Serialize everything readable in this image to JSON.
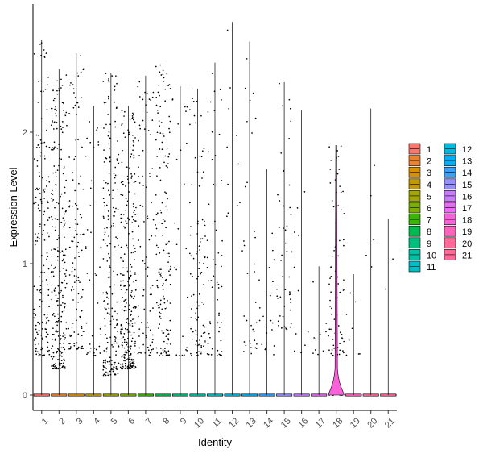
{
  "chart_data": {
    "type": "violin",
    "xlabel": "Identity",
    "ylabel": "Expression Level",
    "ylim": [
      -0.2,
      2.87
    ],
    "yticks": [
      0,
      1,
      2
    ],
    "categories": [
      "1",
      "2",
      "3",
      "4",
      "5",
      "6",
      "7",
      "8",
      "9",
      "10",
      "11",
      "12",
      "13",
      "14",
      "15",
      "16",
      "17",
      "18",
      "19",
      "20",
      "21"
    ],
    "violin_colors": [
      "#F8766D",
      "#EA8331",
      "#D89000",
      "#C09B00",
      "#A3A500",
      "#7CAE00",
      "#39B600",
      "#00BB4E",
      "#00BF7D",
      "#00C1A3",
      "#00BFC4",
      "#00BAE0",
      "#00B0F6",
      "#35A2FF",
      "#9590FF",
      "#C77CFF",
      "#E76BF3",
      "#FA62DB",
      "#FF62BC",
      "#FF6A98",
      "#FF6A98"
    ],
    "max_values": [
      2.7,
      2.48,
      2.6,
      2.2,
      2.45,
      2.2,
      2.43,
      2.53,
      2.35,
      2.33,
      2.53,
      2.84,
      2.69,
      1.72,
      2.38,
      2.17,
      0.98,
      1.9,
      0.92,
      2.18,
      1.34
    ],
    "point_counts": [
      170,
      260,
      120,
      40,
      200,
      280,
      90,
      160,
      25,
      100,
      60,
      12,
      35,
      20,
      50,
      12,
      10,
      75,
      8,
      5,
      2
    ],
    "point_ranges": [
      [
        0.3,
        2.7
      ],
      [
        0.2,
        2.48
      ],
      [
        0.35,
        2.6
      ],
      [
        0.3,
        2.2
      ],
      [
        0.15,
        2.45
      ],
      [
        0.2,
        2.2
      ],
      [
        0.3,
        2.43
      ],
      [
        0.3,
        2.53
      ],
      [
        0.3,
        2.35
      ],
      [
        0.3,
        2.33
      ],
      [
        0.3,
        2.53
      ],
      [
        1.3,
        2.84
      ],
      [
        0.3,
        2.69
      ],
      [
        0.3,
        1.72
      ],
      [
        0.5,
        2.38
      ],
      [
        0.3,
        2.17
      ],
      [
        0.3,
        0.98
      ],
      [
        0.3,
        1.9
      ],
      [
        0.3,
        0.92
      ],
      [
        0.8,
        2.18
      ],
      [
        0.8,
        1.34
      ]
    ],
    "highlight_violin": {
      "category": "18",
      "peak_density_y": 0.1,
      "top_y": 0.2
    },
    "legend": {
      "columns": [
        [
          "1",
          "2",
          "3",
          "4",
          "5",
          "6",
          "7",
          "8",
          "9",
          "10",
          "11"
        ],
        [
          "12",
          "13",
          "14",
          "15",
          "16",
          "17",
          "18",
          "19",
          "20",
          "21"
        ]
      ],
      "placement": "right"
    }
  }
}
